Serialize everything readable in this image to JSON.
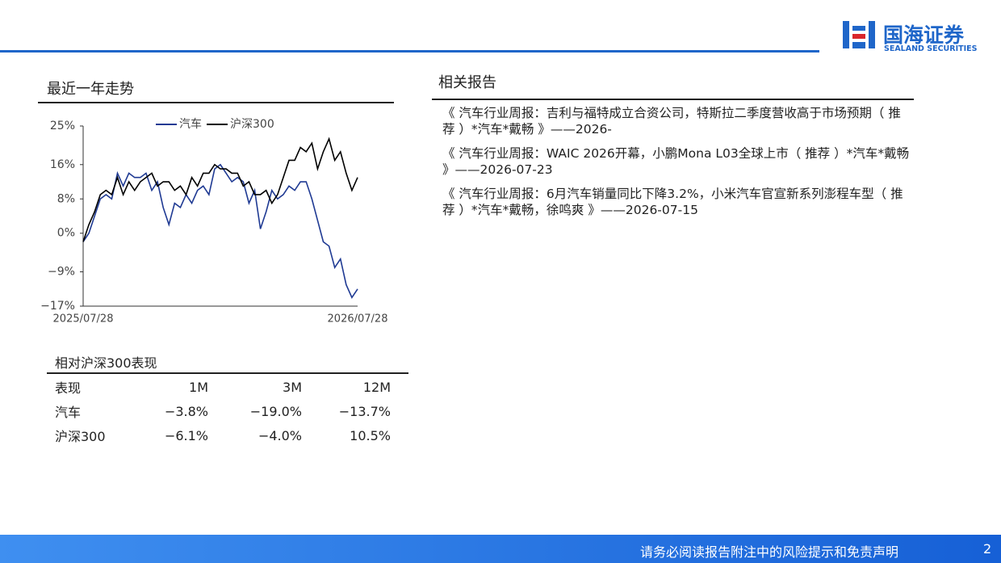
{
  "header": {
    "logo_cn": "国海证券",
    "logo_en": "SEALAND SECURITIES"
  },
  "trend_title": "最近一年走势",
  "chart_data": {
    "type": "line",
    "categories": [
      "2025/07/28",
      null,
      null,
      null,
      null,
      null,
      null,
      null,
      null,
      null,
      null,
      null,
      null,
      null,
      null,
      null,
      null,
      null,
      null,
      null,
      null,
      null,
      null,
      null,
      null,
      null,
      null,
      null,
      null,
      null,
      null,
      null,
      null,
      null,
      null,
      null,
      null,
      null,
      null,
      null,
      null,
      null,
      null,
      null,
      null,
      null,
      null,
      null,
      "2026/07/28"
    ],
    "series": [
      {
        "name": "汽车",
        "color": "#1f3a93",
        "values": [
          -2,
          0,
          4,
          8,
          9,
          8,
          14,
          11,
          14,
          13,
          13,
          14,
          10,
          12,
          6,
          2,
          7,
          6,
          9,
          7,
          10,
          11,
          9,
          15,
          16,
          14,
          12,
          13,
          12,
          7,
          10,
          1,
          5,
          10,
          8,
          9,
          11,
          10,
          12,
          12,
          8,
          3,
          -2,
          -3,
          -8,
          -6,
          -12,
          -15,
          -13
        ]
      },
      {
        "name": "沪深300",
        "color": "#000000",
        "values": [
          -2,
          2,
          5,
          9,
          10,
          9,
          13,
          9,
          12,
          10,
          12,
          13,
          14,
          11,
          12,
          12,
          10,
          11,
          9,
          13,
          11,
          14,
          14,
          16,
          15,
          15,
          14,
          14,
          11,
          12,
          9,
          9,
          10,
          7,
          9,
          13,
          17,
          17,
          20,
          19,
          21,
          15,
          19,
          22,
          17,
          19,
          14,
          10,
          13
        ]
      }
    ],
    "ylim": [
      -17,
      25
    ],
    "yticks": [
      {
        "value": 25,
        "label": "25%"
      },
      {
        "value": 16,
        "label": "16%"
      },
      {
        "value": 8,
        "label": "8%"
      },
      {
        "value": 0,
        "label": "0%"
      },
      {
        "value": -9,
        "label": "−9%"
      },
      {
        "value": -17,
        "label": "−17%"
      }
    ],
    "legend": "top"
  },
  "table": {
    "title": "相对沪深300表现",
    "header": [
      "表现",
      "1M",
      "3M",
      "12M"
    ],
    "rows": [
      [
        "汽车",
        "−3.8%",
        "−19.0%",
        "−13.7%"
      ],
      [
        "沪深300",
        "−6.1%",
        "−4.0%",
        "10.5%"
      ]
    ]
  },
  "reports": {
    "title": "相关报告",
    "items": [
      "《 汽车行业周报：吉利与福特成立合资公司，特斯拉二季度营收高于市场预期（ 推荐 ）*汽车*戴畅 》——2026-",
      "《 汽车行业周报：WAIC 2026开幕，小鹏Mona L03全球上市（ 推荐 ）*汽车*戴畅 》——2026-07-23",
      "《 汽车行业周报：6月汽车销量同比下降3.2%，小米汽车官宣新系列澎程车型（ 推荐 ）*汽车*戴畅，徐鸣爽 》——2026-07-15"
    ]
  },
  "footer": {
    "disclaimer": "请务必阅读报告附注中的风险提示和免责声明",
    "page": "2"
  }
}
